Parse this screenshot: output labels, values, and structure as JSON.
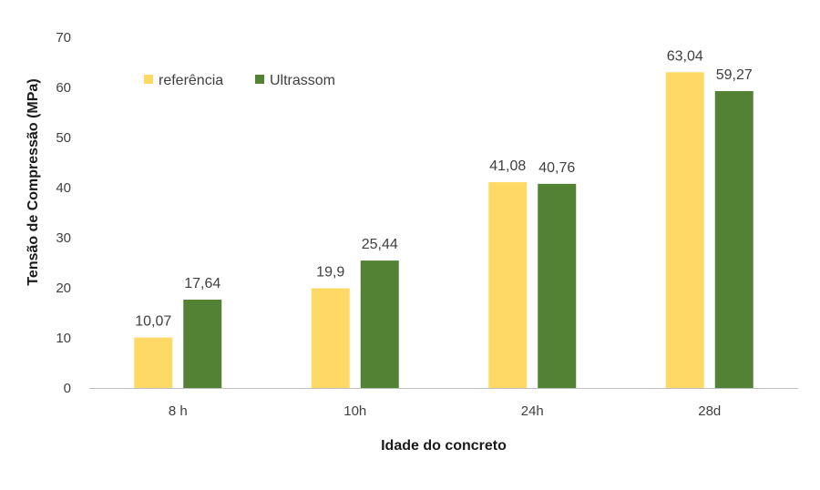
{
  "chart_data": {
    "type": "bar",
    "xlabel": "Idade do concreto",
    "ylabel": "Tensão de Compressão (MPa)",
    "ylim": [
      0,
      70
    ],
    "yticks": [
      0,
      10,
      20,
      30,
      40,
      50,
      60,
      70
    ],
    "grid": false,
    "legend_position": "top-left",
    "categories": [
      "8 h",
      "10h",
      "24h",
      "28d"
    ],
    "series": [
      {
        "name": "referência",
        "color": "#FFD966",
        "values": [
          10.07,
          19.9,
          41.08,
          63.04
        ],
        "labels": [
          "10,07",
          "19,9",
          "41,08",
          "63,04"
        ]
      },
      {
        "name": "Ultrassom",
        "color": "#548235",
        "values": [
          17.64,
          25.44,
          40.76,
          59.27
        ],
        "labels": [
          "17,64",
          "25,44",
          "40,76",
          "59,27"
        ]
      }
    ]
  }
}
